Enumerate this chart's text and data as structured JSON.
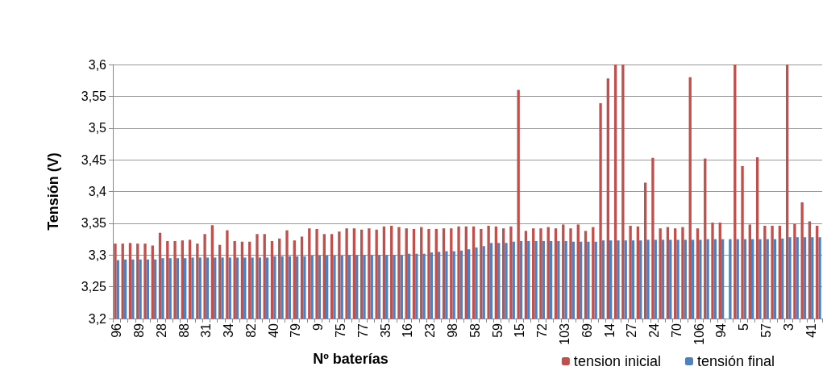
{
  "chart_data": {
    "type": "bar",
    "xlabel": "Nº baterías",
    "ylabel": "Tensión (V)",
    "categories": [
      "96",
      null,
      null,
      "89",
      null,
      null,
      "28",
      null,
      null,
      "88",
      null,
      null,
      "31",
      null,
      null,
      "34",
      null,
      null,
      "82",
      null,
      null,
      "40",
      null,
      null,
      "79",
      null,
      null,
      "9",
      null,
      null,
      "75",
      null,
      null,
      "77",
      null,
      null,
      "35",
      null,
      null,
      "16",
      null,
      null,
      "23",
      null,
      null,
      "98",
      null,
      null,
      "58",
      null,
      null,
      "59",
      null,
      null,
      "15",
      null,
      null,
      "72",
      null,
      null,
      "103",
      null,
      null,
      "69",
      null,
      null,
      "14",
      null,
      null,
      "27",
      null,
      null,
      "24",
      null,
      null,
      "70",
      null,
      null,
      "106",
      null,
      null,
      "94",
      null,
      null,
      "5",
      null,
      null,
      "57",
      null,
      null,
      "3",
      null,
      null,
      "41",
      null
    ],
    "series": [
      {
        "name": "tension inicial",
        "color": "#c0504d",
        "values": [
          3.318,
          3.318,
          3.319,
          3.318,
          3.318,
          3.315,
          3.335,
          3.322,
          3.322,
          3.323,
          3.324,
          3.318,
          3.333,
          3.347,
          3.316,
          3.339,
          3.322,
          3.321,
          3.321,
          3.333,
          3.333,
          3.322,
          3.326,
          3.339,
          3.323,
          3.329,
          3.342,
          3.341,
          3.333,
          3.333,
          3.337,
          3.342,
          3.342,
          3.34,
          3.342,
          3.34,
          3.345,
          3.346,
          3.344,
          3.342,
          3.341,
          3.344,
          3.341,
          3.341,
          3.342,
          3.342,
          3.345,
          3.345,
          3.345,
          3.341,
          3.346,
          3.345,
          3.342,
          3.345,
          3.56,
          3.338,
          3.342,
          3.342,
          3.344,
          3.342,
          3.348,
          3.342,
          3.348,
          3.338,
          3.344,
          3.539,
          3.578,
          3.6,
          3.6,
          3.346,
          3.345,
          3.414,
          3.453,
          3.342,
          3.344,
          3.342,
          3.344,
          3.58,
          3.342,
          3.452,
          3.351,
          3.351,
          null,
          3.6,
          3.44,
          3.348,
          3.454,
          3.346,
          3.346,
          3.346,
          3.6,
          3.349,
          3.383,
          3.353,
          3.346
        ]
      },
      {
        "name": "tensión final",
        "color": "#4f81bd",
        "values": [
          3.292,
          3.293,
          3.293,
          3.293,
          3.293,
          3.293,
          3.295,
          3.295,
          3.295,
          3.295,
          3.296,
          3.296,
          3.296,
          3.296,
          3.296,
          3.296,
          3.296,
          3.296,
          3.296,
          3.296,
          3.296,
          3.298,
          3.298,
          3.298,
          3.298,
          3.298,
          3.299,
          3.299,
          3.299,
          3.299,
          3.299,
          3.3,
          3.3,
          3.3,
          3.3,
          3.3,
          3.3,
          3.3,
          3.3,
          3.302,
          3.302,
          3.302,
          3.304,
          3.305,
          3.306,
          3.306,
          3.307,
          3.309,
          3.312,
          3.314,
          3.319,
          3.319,
          3.319,
          3.321,
          3.322,
          3.322,
          3.322,
          3.322,
          3.322,
          3.322,
          3.322,
          3.321,
          3.321,
          3.321,
          3.321,
          3.323,
          3.323,
          3.323,
          3.323,
          3.323,
          3.323,
          3.324,
          3.324,
          3.324,
          3.324,
          3.324,
          3.324,
          3.324,
          3.324,
          3.325,
          3.325,
          3.325,
          3.325,
          3.325,
          3.325,
          3.325,
          3.325,
          3.325,
          3.325,
          3.326,
          3.328,
          3.328,
          3.328,
          3.328,
          3.328
        ]
      }
    ],
    "ylim": [
      3.2,
      3.6
    ],
    "yticks": [
      {
        "value": 3.2,
        "label": "3,2"
      },
      {
        "value": 3.25,
        "label": "3,25"
      },
      {
        "value": 3.3,
        "label": "3,3"
      },
      {
        "value": 3.35,
        "label": "3,35"
      },
      {
        "value": 3.4,
        "label": "3,4"
      },
      {
        "value": 3.45,
        "label": "3,45"
      },
      {
        "value": 3.5,
        "label": "3,5"
      },
      {
        "value": 3.55,
        "label": "3,55"
      },
      {
        "value": 3.6,
        "label": "3,6"
      }
    ],
    "grid": "y",
    "legend": "bottom right"
  }
}
